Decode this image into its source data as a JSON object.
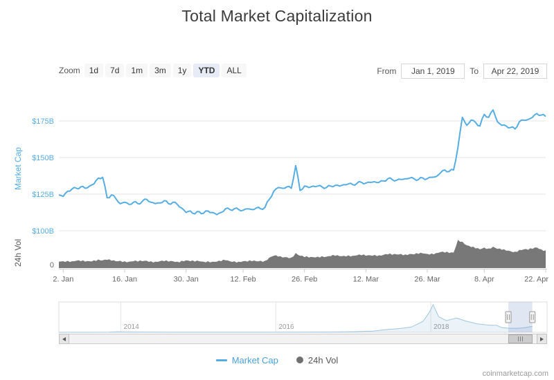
{
  "title": "Total Market Capitalization",
  "range_selector": {
    "zoom_label": "Zoom",
    "buttons": [
      "1d",
      "7d",
      "1m",
      "3m",
      "1y",
      "YTD",
      "ALL"
    ],
    "selected": "YTD",
    "from_label": "From",
    "from_value": "Jan 1, 2019",
    "to_label": "To",
    "to_value": "Apr 22, 2019"
  },
  "axes": {
    "market_cap_label": "Market Cap",
    "vol_label": "24h Vol"
  },
  "legend": [
    {
      "label": "Market Cap"
    },
    {
      "label": "24h Vol"
    }
  ],
  "watermark": "coinmarketcap.com",
  "colors": {
    "line": "#55ade3",
    "axis_label": "#55ade3",
    "volume": "#787878",
    "grid": "#e6e6e6",
    "axis_line": "#cccccc",
    "x_label": "#666666",
    "nav_line": "#9fc6e2",
    "nav_fill": "rgba(90,150,200,0.12)",
    "selection_fill": "rgba(102,133,194,0.20)"
  },
  "chart_data": [
    {
      "type": "line",
      "series_name": "Market Cap",
      "title": "Total Market Capitalization",
      "unit": "USD billions",
      "x_unit": "days from 2019-01-01",
      "x_range_dates": [
        "Jan 1, 2019",
        "Apr 22, 2019"
      ],
      "ylim": [
        100,
        187
      ],
      "y_ticks": [
        {
          "label": "$175B",
          "value": 175
        },
        {
          "label": "$150B",
          "value": 150
        },
        {
          "label": "$125B",
          "value": 125
        },
        {
          "label": "$100B",
          "value": 100
        }
      ],
      "x_ticks": [
        {
          "label": "2. Jan",
          "day": 1
        },
        {
          "label": "16. Jan",
          "day": 15
        },
        {
          "label": "30. Jan",
          "day": 29
        },
        {
          "label": "12. Feb",
          "day": 42
        },
        {
          "label": "26. Feb",
          "day": 56
        },
        {
          "label": "12. Mar",
          "day": 70
        },
        {
          "label": "26. Mar",
          "day": 84
        },
        {
          "label": "8. Apr",
          "day": 97
        },
        {
          "label": "22. Apr",
          "day": 111
        }
      ],
      "values": [
        124.5,
        123.5,
        127.0,
        128.5,
        129.0,
        130.0,
        129.0,
        130.5,
        132.0,
        136.0,
        136.5,
        122.5,
        124.5,
        122.0,
        118.5,
        119.5,
        118.0,
        119.5,
        118.5,
        120.0,
        121.5,
        119.5,
        118.5,
        119.0,
        120.5,
        118.5,
        119.5,
        118.0,
        115.5,
        112.5,
        113.5,
        111.5,
        113.0,
        112.0,
        113.5,
        112.5,
        111.0,
        112.5,
        115.0,
        114.5,
        115.0,
        114.5,
        114.0,
        115.0,
        114.5,
        115.5,
        115.0,
        116.0,
        121.5,
        127.0,
        129.5,
        129.0,
        130.0,
        129.0,
        144.5,
        127.5,
        130.5,
        129.5,
        130.5,
        130.5,
        130.0,
        129.5,
        130.5,
        131.0,
        130.5,
        131.5,
        132.0,
        131.5,
        132.5,
        133.0,
        132.5,
        133.0,
        133.5,
        133.0,
        134.0,
        135.5,
        135.0,
        134.5,
        135.0,
        135.5,
        136.0,
        135.5,
        135.0,
        136.0,
        135.5,
        136.5,
        137.0,
        139.5,
        141.5,
        140.5,
        141.5,
        157.0,
        177.5,
        172.0,
        175.5,
        174.0,
        171.5,
        179.5,
        177.5,
        182.5,
        174.5,
        172.0,
        171.5,
        170.5,
        169.5,
        174.5,
        175.5,
        176.0,
        177.5,
        180.0,
        179.0,
        178.0
      ]
    },
    {
      "type": "area",
      "series_name": "24h Vol",
      "unit": "USD billions",
      "ylim": [
        0,
        65
      ],
      "y_ticks": [
        {
          "label": "0",
          "value": 0
        }
      ],
      "values": [
        14,
        15,
        16,
        15,
        16,
        15,
        14,
        15,
        17,
        19,
        17,
        18,
        16,
        15,
        16,
        15,
        14,
        15,
        14,
        15,
        16,
        15,
        14,
        15,
        15,
        14,
        15,
        14,
        16,
        17,
        15,
        14,
        15,
        14,
        15,
        14,
        14,
        15,
        17,
        15,
        15,
        14,
        15,
        14,
        15,
        15,
        16,
        16,
        23,
        27,
        25,
        23,
        24,
        23,
        33,
        27,
        24,
        23,
        24,
        25,
        26,
        25,
        26,
        27,
        26,
        27,
        28,
        27,
        28,
        28,
        27,
        28,
        29,
        28,
        29,
        30,
        29,
        30,
        31,
        30,
        31,
        30,
        31,
        32,
        31,
        32,
        33,
        35,
        34,
        33,
        34,
        62,
        58,
        50,
        46,
        43,
        41,
        45,
        43,
        47,
        42,
        40,
        38,
        37,
        36,
        40,
        41,
        40,
        42,
        45,
        41,
        39
      ]
    },
    {
      "type": "area",
      "series_name": "Market Cap (navigator, full history)",
      "unit": "USD billions",
      "x_range": [
        2013.2,
        2019.5
      ],
      "ymax": 830,
      "year_ticks": [
        {
          "label": "2014",
          "year": 2014
        },
        {
          "label": "2016",
          "year": 2016
        },
        {
          "label": "2018",
          "year": 2018
        }
      ],
      "selection": [
        2019.0,
        2019.31
      ],
      "points": [
        [
          2013.2,
          1.5
        ],
        [
          2013.6,
          1.3
        ],
        [
          2013.85,
          6
        ],
        [
          2013.95,
          15
        ],
        [
          2014.05,
          12
        ],
        [
          2014.3,
          8
        ],
        [
          2014.7,
          5.5
        ],
        [
          2015.1,
          4
        ],
        [
          2015.5,
          4.2
        ],
        [
          2015.95,
          7
        ],
        [
          2016.4,
          9
        ],
        [
          2016.8,
          13
        ],
        [
          2017.0,
          18
        ],
        [
          2017.25,
          35
        ],
        [
          2017.45,
          90
        ],
        [
          2017.6,
          115
        ],
        [
          2017.75,
          160
        ],
        [
          2017.9,
          330
        ],
        [
          2017.98,
          600
        ],
        [
          2018.03,
          830
        ],
        [
          2018.1,
          470
        ],
        [
          2018.2,
          350
        ],
        [
          2018.33,
          430
        ],
        [
          2018.45,
          340
        ],
        [
          2018.6,
          255
        ],
        [
          2018.75,
          215
        ],
        [
          2018.85,
          210
        ],
        [
          2018.92,
          140
        ],
        [
          2019.0,
          125
        ],
        [
          2019.1,
          118
        ],
        [
          2019.2,
          135
        ],
        [
          2019.31,
          178
        ]
      ]
    }
  ]
}
